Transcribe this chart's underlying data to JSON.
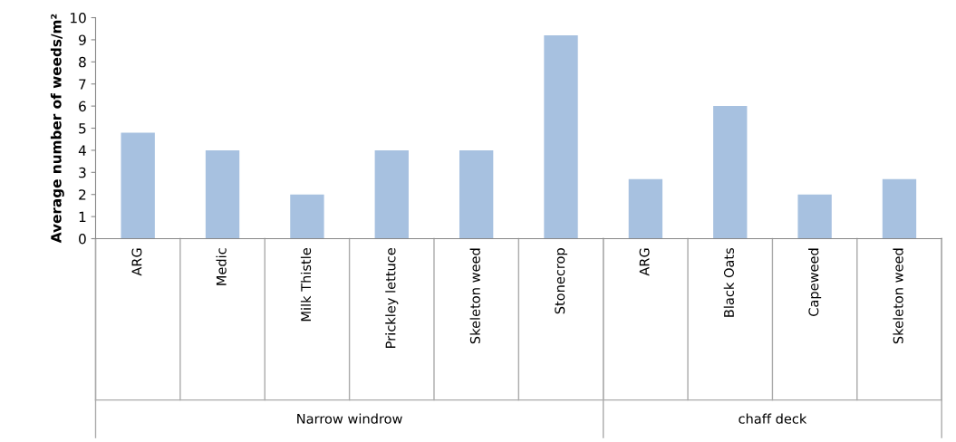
{
  "chart_data": {
    "type": "bar",
    "ylabel": "Average number of weeds/m²",
    "categories": [
      "ARG",
      "Medic",
      "Milk Thistle",
      "Prickley lettuce",
      "Skeleton weed",
      "Stonecrop",
      "ARG",
      "Black Oats",
      "Capeweed",
      "Skeleton weed"
    ],
    "values": [
      4.8,
      4.0,
      2.0,
      4.0,
      4.0,
      9.2,
      2.7,
      6.0,
      2.0,
      2.7
    ],
    "color": "#a7c1e0",
    "ylim": [
      0,
      10
    ],
    "yticks": [
      0,
      1,
      2,
      3,
      4,
      5,
      6,
      7,
      8,
      9,
      10
    ],
    "grid": false,
    "legend": false,
    "annotations": [
      "Narrow windrow",
      "chaff deck"
    ]
  }
}
